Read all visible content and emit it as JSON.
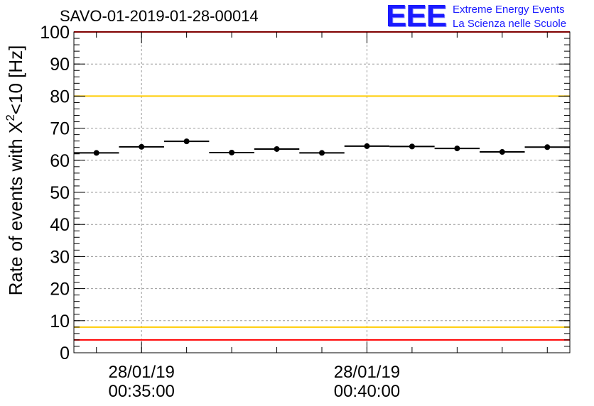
{
  "header": {
    "title": "SAVO-01-2019-01-28-00014",
    "logo_letters": "EEE",
    "logo_line1": "Extreme Energy Events",
    "logo_line2": "La Scienza nelle Scuole"
  },
  "colors": {
    "logo": "#1a1aff",
    "red_limit": "#ff0000",
    "yellow_limit": "#ffcc00",
    "grid": "#999999"
  },
  "chart_data": {
    "type": "scatter",
    "title": "SAVO-01-2019-01-28-00014",
    "ylabel_main": "Rate of events with X",
    "ylabel_sup": "2",
    "ylabel_tail": "<10 [Hz]",
    "ylim": [
      0,
      100
    ],
    "yticks": [
      "0",
      "10",
      "20",
      "30",
      "40",
      "50",
      "60",
      "70",
      "80",
      "90",
      "100"
    ],
    "xlim": [
      0,
      11
    ],
    "xticks": [
      {
        "x": 1.5,
        "date": "28/01/19",
        "time": "00:35:00"
      },
      {
        "x": 6.5,
        "date": "28/01/19",
        "time": "00:40:00"
      }
    ],
    "points": [
      {
        "x": 0.5,
        "y": 62.3
      },
      {
        "x": 1.5,
        "y": 64.2
      },
      {
        "x": 2.5,
        "y": 65.9
      },
      {
        "x": 3.5,
        "y": 62.4
      },
      {
        "x": 4.5,
        "y": 63.5
      },
      {
        "x": 5.5,
        "y": 62.3
      },
      {
        "x": 6.5,
        "y": 64.4
      },
      {
        "x": 7.5,
        "y": 64.3
      },
      {
        "x": 8.5,
        "y": 63.7
      },
      {
        "x": 9.5,
        "y": 62.6
      },
      {
        "x": 10.5,
        "y": 64.1
      }
    ],
    "x_error": 0.5,
    "reference_lines": [
      {
        "y": 100,
        "color": "#ff0000"
      },
      {
        "y": 80,
        "color": "#ffcc00"
      },
      {
        "y": 8,
        "color": "#ffcc00"
      },
      {
        "y": 4,
        "color": "#ff0000"
      }
    ],
    "grid": true
  }
}
